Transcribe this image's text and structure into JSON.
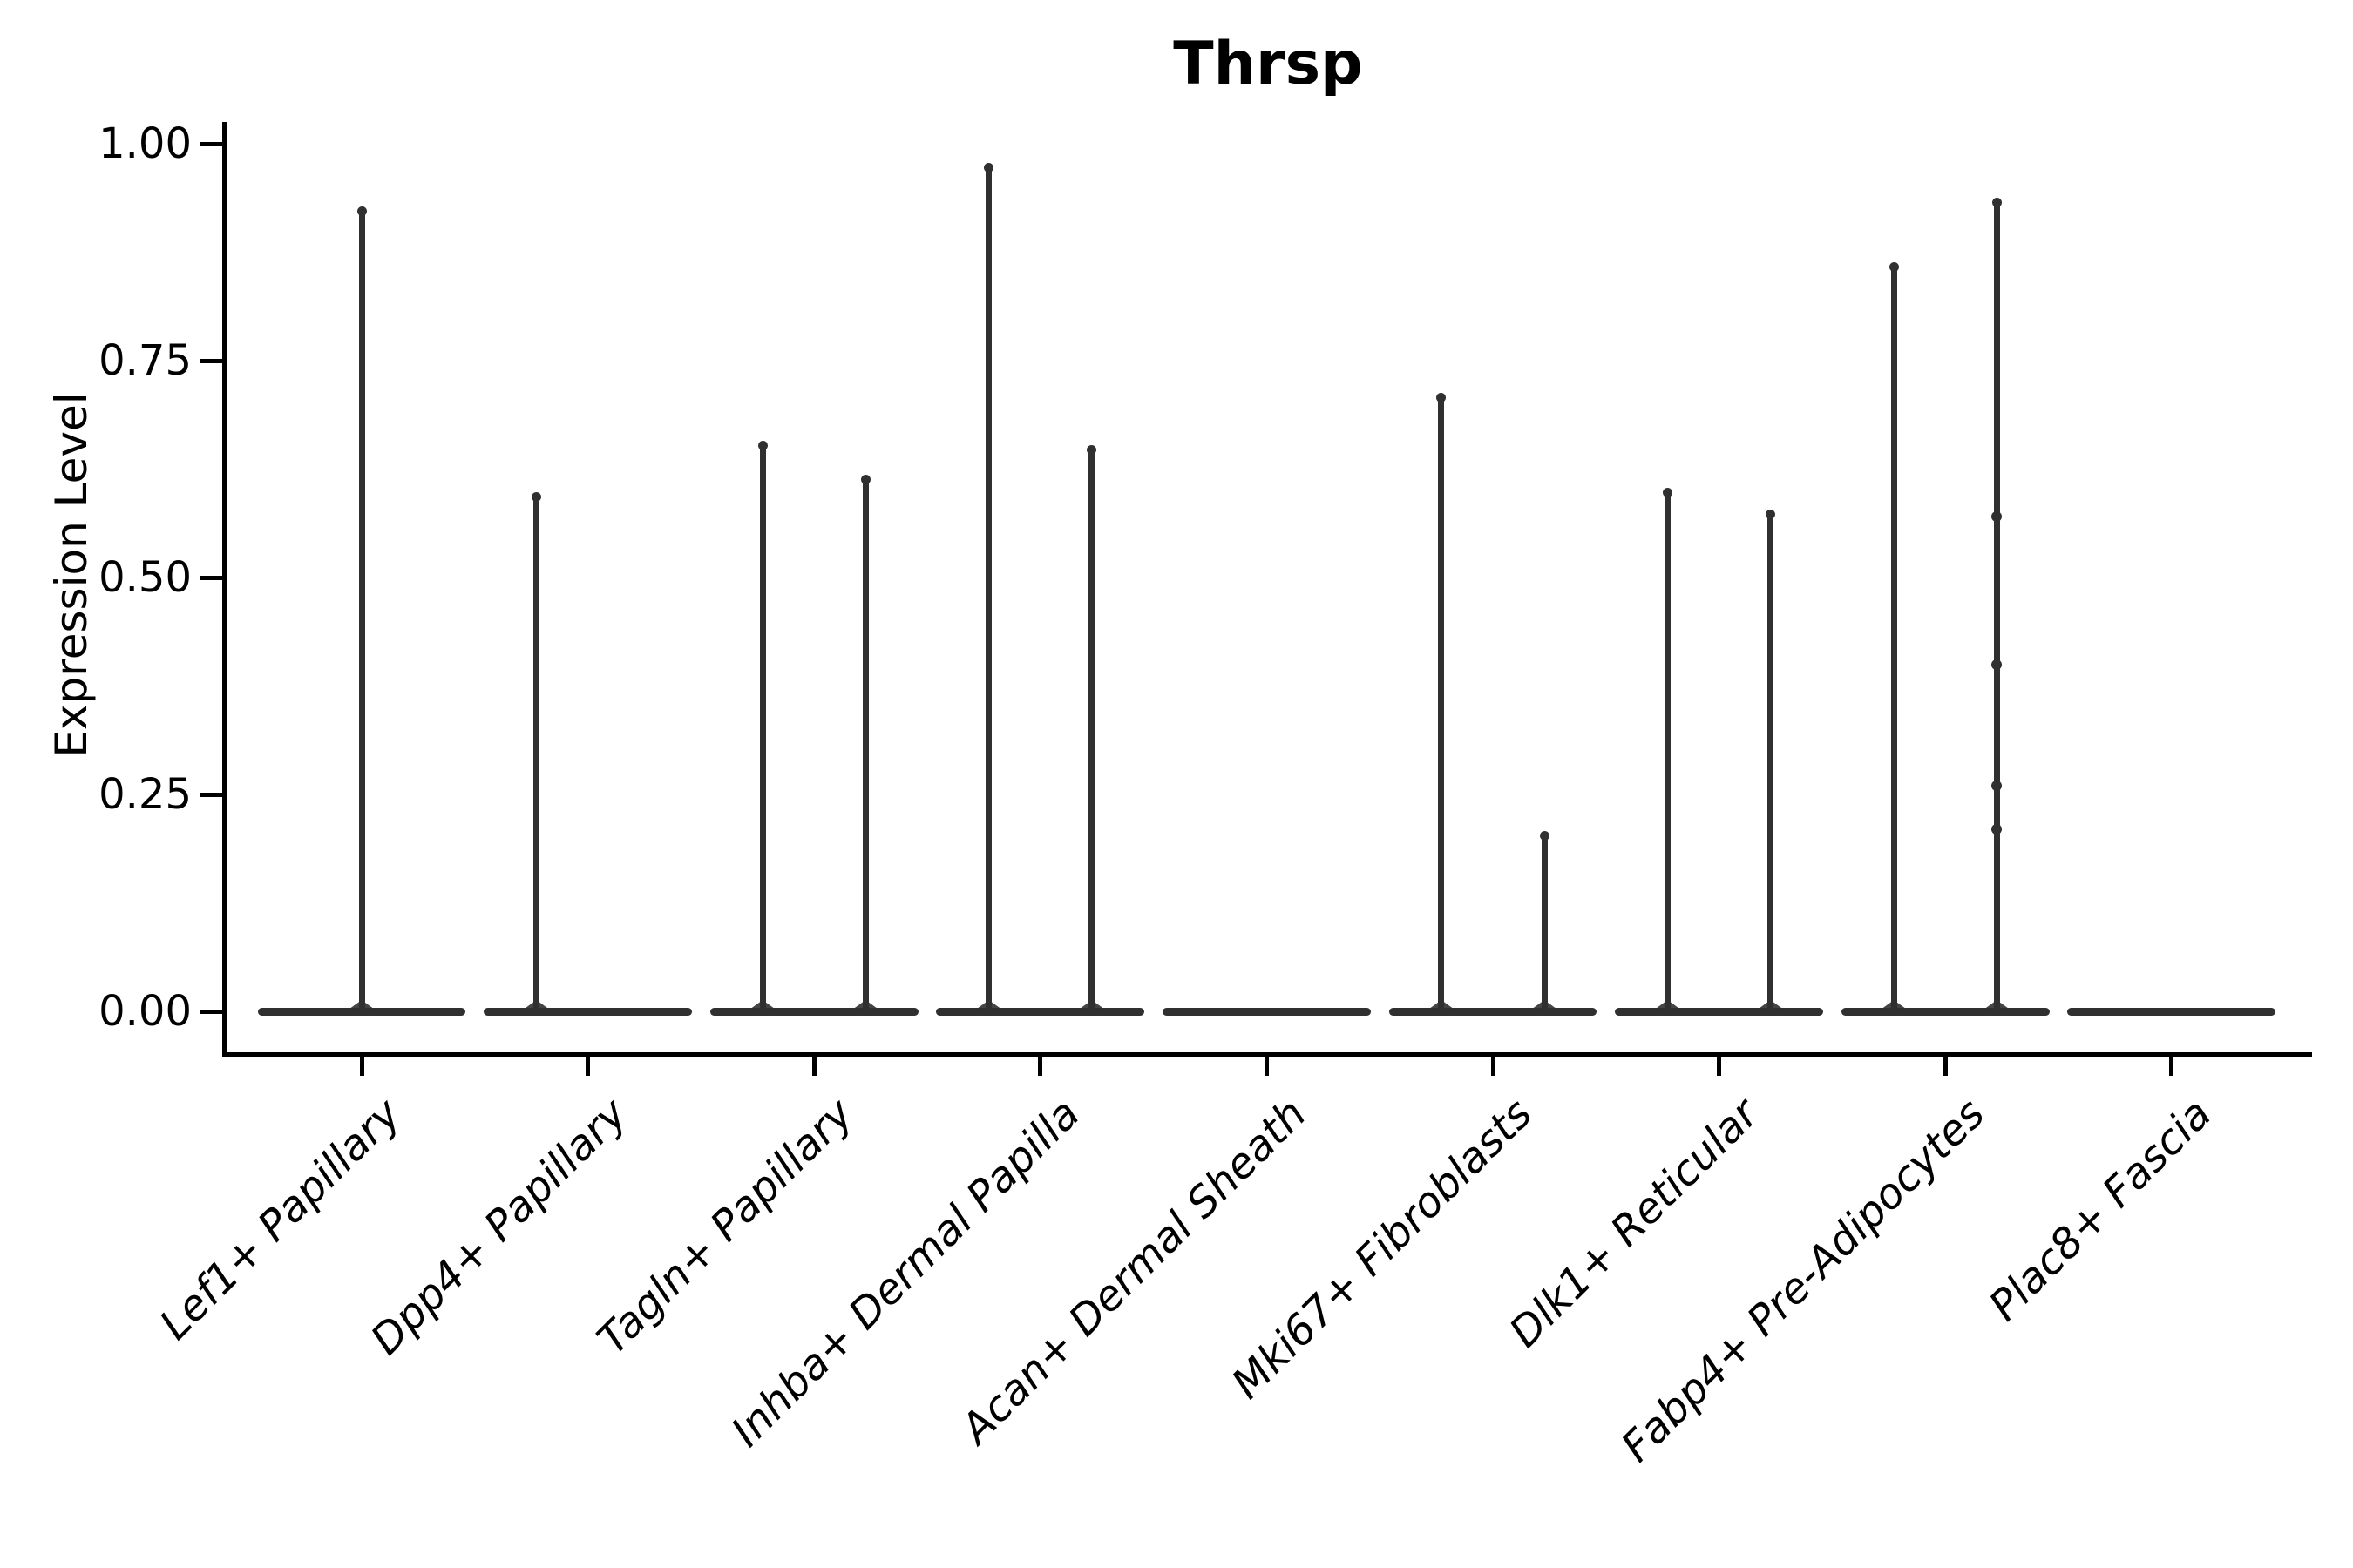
{
  "title": "Thrsp",
  "axes": {
    "ylabel": "Expression Level",
    "ytick_labels": [
      "0.00",
      "0.25",
      "0.50",
      "0.75",
      "1.00"
    ]
  },
  "style": {
    "violin_color": "#303030",
    "axis_color": "#000000",
    "background": "#ffffff",
    "text_color": "#000000"
  },
  "chart_data": {
    "type": "violin",
    "title": "Thrsp",
    "xlabel": "",
    "ylabel": "Expression Level",
    "yticks": [
      0.0,
      0.25,
      0.5,
      0.75,
      1.0
    ],
    "ytick_labels": [
      "0.00",
      "0.25",
      "0.50",
      "0.75",
      "1.00"
    ],
    "ylim": [
      -0.05,
      1.03
    ],
    "grid": false,
    "legend": "none",
    "xtick_rotation": 45,
    "categories": [
      "Lef1+ Papillary",
      "Dpp4+ Papillary",
      "Tagln+ Papillary",
      "Inhba+ Dermal Papilla",
      "Acan+ Dermal Sheath",
      "Mki67+ Fibroblasts",
      "Dlk1+ Reticular",
      "Fabp4+ Pre-Adipocytes",
      "Plac8+ Fascia"
    ],
    "base_halfwidth": 0.46,
    "base_value": 0.0,
    "violins": [
      {
        "category": "Lef1+ Papillary",
        "spikes": [
          {
            "offset": 0.0,
            "max": 0.925,
            "points": []
          }
        ]
      },
      {
        "category": "Dpp4+ Papillary",
        "spikes": [
          {
            "offset": -0.2275,
            "max": 0.595,
            "points": []
          }
        ]
      },
      {
        "category": "Tagln+ Papillary",
        "spikes": [
          {
            "offset": -0.2275,
            "max": 0.655,
            "points": []
          },
          {
            "offset": 0.2275,
            "max": 0.615,
            "points": []
          }
        ]
      },
      {
        "category": "Inhba+ Dermal Papilla",
        "spikes": [
          {
            "offset": -0.2275,
            "max": 0.975,
            "points": []
          },
          {
            "offset": 0.2275,
            "max": 0.65,
            "points": []
          }
        ]
      },
      {
        "category": "Acan+ Dermal Sheath",
        "spikes": []
      },
      {
        "category": "Mki67+ Fibroblasts",
        "spikes": [
          {
            "offset": -0.2275,
            "max": 0.71,
            "points": []
          },
          {
            "offset": 0.2275,
            "max": 0.205,
            "points": []
          }
        ]
      },
      {
        "category": "Dlk1+ Reticular",
        "spikes": [
          {
            "offset": -0.2275,
            "max": 0.6,
            "points": []
          },
          {
            "offset": 0.2275,
            "max": 0.575,
            "points": []
          }
        ]
      },
      {
        "category": "Fabp4+ Pre-Adipocytes",
        "spikes": [
          {
            "offset": -0.2275,
            "max": 0.86,
            "points": []
          },
          {
            "offset": 0.2275,
            "max": 0.935,
            "points": [
              0.57,
              0.4,
              0.26,
              0.21
            ]
          }
        ]
      },
      {
        "category": "Plac8+ Fascia",
        "spikes": []
      }
    ]
  }
}
